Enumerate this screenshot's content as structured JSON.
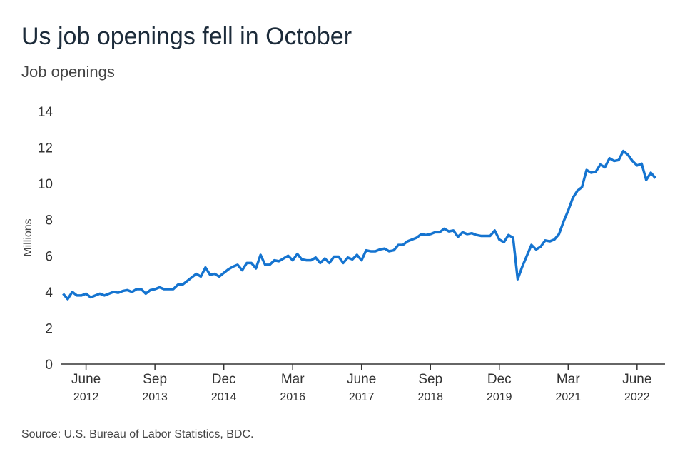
{
  "chart_data": {
    "type": "line",
    "title": "Us job openings fell in October",
    "subtitle": "Job openings",
    "y_label": "Millions",
    "source": "Source: U.S. Bureau of Labor Statistics, BDC.",
    "color": "#1574d0",
    "x": [
      "2012-01",
      "2012-02",
      "2012-03",
      "2012-04",
      "2012-05",
      "2012-06",
      "2012-07",
      "2012-08",
      "2012-09",
      "2012-10",
      "2012-11",
      "2012-12",
      "2013-01",
      "2013-02",
      "2013-03",
      "2013-04",
      "2013-05",
      "2013-06",
      "2013-07",
      "2013-08",
      "2013-09",
      "2013-10",
      "2013-11",
      "2013-12",
      "2014-01",
      "2014-02",
      "2014-03",
      "2014-04",
      "2014-05",
      "2014-06",
      "2014-07",
      "2014-08",
      "2014-09",
      "2014-10",
      "2014-11",
      "2014-12",
      "2015-01",
      "2015-02",
      "2015-03",
      "2015-04",
      "2015-05",
      "2015-06",
      "2015-07",
      "2015-08",
      "2015-09",
      "2015-10",
      "2015-11",
      "2015-12",
      "2016-01",
      "2016-02",
      "2016-03",
      "2016-04",
      "2016-05",
      "2016-06",
      "2016-07",
      "2016-08",
      "2016-09",
      "2016-10",
      "2016-11",
      "2016-12",
      "2017-01",
      "2017-02",
      "2017-03",
      "2017-04",
      "2017-05",
      "2017-06",
      "2017-07",
      "2017-08",
      "2017-09",
      "2017-10",
      "2017-11",
      "2017-12",
      "2018-01",
      "2018-02",
      "2018-03",
      "2018-04",
      "2018-05",
      "2018-06",
      "2018-07",
      "2018-08",
      "2018-09",
      "2018-10",
      "2018-11",
      "2018-12",
      "2019-01",
      "2019-02",
      "2019-03",
      "2019-04",
      "2019-05",
      "2019-06",
      "2019-07",
      "2019-08",
      "2019-09",
      "2019-10",
      "2019-11",
      "2019-12",
      "2020-01",
      "2020-02",
      "2020-03",
      "2020-04",
      "2020-05",
      "2020-06",
      "2020-07",
      "2020-08",
      "2020-09",
      "2020-10",
      "2020-11",
      "2020-12",
      "2021-01",
      "2021-02",
      "2021-03",
      "2021-04",
      "2021-05",
      "2021-06",
      "2021-07",
      "2021-08",
      "2021-09",
      "2021-10",
      "2021-11",
      "2021-12",
      "2022-01",
      "2022-02",
      "2022-03",
      "2022-04",
      "2022-05",
      "2022-06",
      "2022-07",
      "2022-08",
      "2022-09",
      "2022-10"
    ],
    "values": [
      3.9,
      3.6,
      4.0,
      3.8,
      3.8,
      3.9,
      3.7,
      3.8,
      3.9,
      3.8,
      3.9,
      4.0,
      3.95,
      4.05,
      4.1,
      4.0,
      4.15,
      4.15,
      3.9,
      4.1,
      4.15,
      4.25,
      4.15,
      4.15,
      4.15,
      4.4,
      4.4,
      4.6,
      4.8,
      5.0,
      4.85,
      5.35,
      4.95,
      5.0,
      4.85,
      5.05,
      5.25,
      5.4,
      5.5,
      5.2,
      5.6,
      5.6,
      5.3,
      6.05,
      5.5,
      5.5,
      5.75,
      5.7,
      5.85,
      6.0,
      5.75,
      6.1,
      5.8,
      5.75,
      5.75,
      5.9,
      5.6,
      5.85,
      5.6,
      5.95,
      5.95,
      5.6,
      5.9,
      5.8,
      6.05,
      5.75,
      6.3,
      6.25,
      6.25,
      6.35,
      6.4,
      6.25,
      6.3,
      6.6,
      6.6,
      6.8,
      6.9,
      7.0,
      7.2,
      7.15,
      7.2,
      7.3,
      7.3,
      7.5,
      7.35,
      7.4,
      7.05,
      7.3,
      7.2,
      7.25,
      7.15,
      7.1,
      7.1,
      7.1,
      7.4,
      6.9,
      6.75,
      7.15,
      7.0,
      4.7,
      5.4,
      6.0,
      6.6,
      6.35,
      6.5,
      6.85,
      6.8,
      6.9,
      7.2,
      7.9,
      8.5,
      9.2,
      9.6,
      9.8,
      10.75,
      10.6,
      10.65,
      11.05,
      10.9,
      11.4,
      11.25,
      11.3,
      11.8,
      11.6,
      11.25,
      11.0,
      11.1,
      10.2,
      10.6,
      10.3
    ],
    "xlim": [
      "2011-12",
      "2022-11"
    ],
    "xticks": [
      {
        "value": "2012-06",
        "label": [
          "June",
          "2012"
        ]
      },
      {
        "value": "2013-09",
        "label": [
          "Sep",
          "2013"
        ]
      },
      {
        "value": "2014-12",
        "label": [
          "Dec",
          "2014"
        ]
      },
      {
        "value": "2016-03",
        "label": [
          "Mar",
          "2016"
        ]
      },
      {
        "value": "2017-06",
        "label": [
          "June",
          "2017"
        ]
      },
      {
        "value": "2018-09",
        "label": [
          "Sep",
          "2018"
        ]
      },
      {
        "value": "2019-12",
        "label": [
          "Dec",
          "2019"
        ]
      },
      {
        "value": "2021-03",
        "label": [
          "Mar",
          "2021"
        ]
      },
      {
        "value": "2022-06",
        "label": [
          "June",
          "2022"
        ]
      }
    ],
    "ylim": [
      0,
      14
    ],
    "yticks": [
      0,
      2,
      4,
      6,
      8,
      10,
      12,
      14
    ],
    "grid": false
  }
}
